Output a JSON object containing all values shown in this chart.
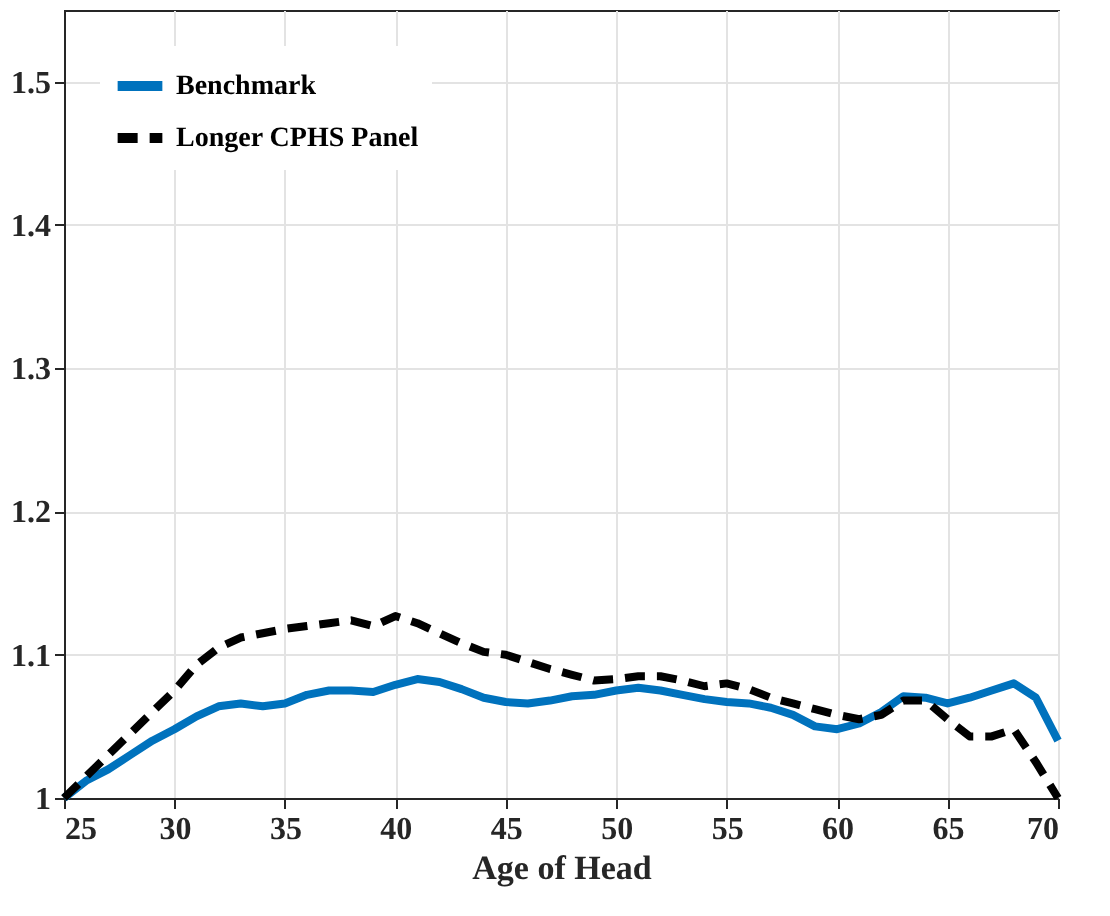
{
  "chart_data": {
    "type": "line",
    "xlabel": "Age of Head",
    "x": [
      25,
      26,
      27,
      28,
      29,
      30,
      31,
      32,
      33,
      34,
      35,
      36,
      37,
      38,
      39,
      40,
      41,
      42,
      43,
      44,
      45,
      46,
      47,
      48,
      49,
      50,
      51,
      52,
      53,
      54,
      55,
      56,
      57,
      58,
      59,
      60,
      61,
      62,
      63,
      64,
      65,
      66,
      67,
      68,
      69,
      70
    ],
    "series": [
      {
        "name": "Benchmark",
        "color": "#0072bd",
        "line_style": "solid",
        "values": [
          1.0,
          1.012,
          1.02,
          1.03,
          1.04,
          1.048,
          1.057,
          1.064,
          1.066,
          1.064,
          1.066,
          1.072,
          1.075,
          1.075,
          1.074,
          1.079,
          1.083,
          1.081,
          1.076,
          1.07,
          1.067,
          1.066,
          1.068,
          1.071,
          1.072,
          1.075,
          1.077,
          1.075,
          1.072,
          1.069,
          1.067,
          1.066,
          1.063,
          1.058,
          1.05,
          1.048,
          1.052,
          1.06,
          1.071,
          1.07,
          1.066,
          1.07,
          1.075,
          1.08,
          1.07,
          1.04
        ]
      },
      {
        "name": "Longer CPHS Panel",
        "color": "#000000",
        "line_style": "dashed",
        "values": [
          1.0,
          1.015,
          1.03,
          1.045,
          1.06,
          1.075,
          1.093,
          1.105,
          1.112,
          1.115,
          1.118,
          1.12,
          1.122,
          1.124,
          1.12,
          1.127,
          1.122,
          1.115,
          1.108,
          1.102,
          1.1,
          1.095,
          1.09,
          1.086,
          1.082,
          1.083,
          1.085,
          1.085,
          1.082,
          1.078,
          1.08,
          1.076,
          1.07,
          1.066,
          1.062,
          1.058,
          1.055,
          1.058,
          1.068,
          1.068,
          1.055,
          1.043,
          1.043,
          1.048,
          1.025,
          1.0
        ]
      }
    ],
    "xlim": [
      25,
      70
    ],
    "xticks": [
      25,
      30,
      35,
      40,
      45,
      50,
      55,
      60,
      65,
      70
    ],
    "ylim": [
      1,
      1.55
    ],
    "yticks": [
      1,
      1.1,
      1.2,
      1.3,
      1.4,
      1.5
    ],
    "grid": true,
    "legend": "top left"
  }
}
